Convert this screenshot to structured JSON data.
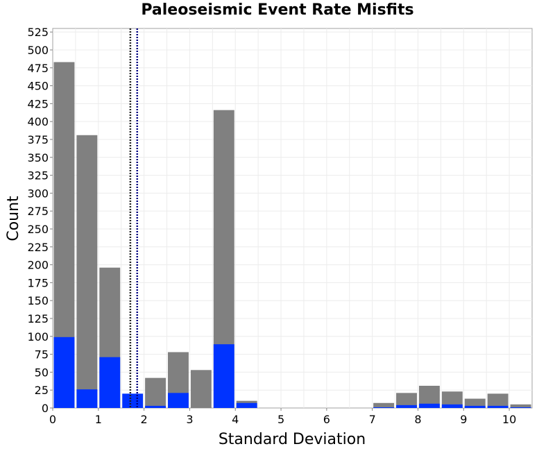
{
  "chart_data": {
    "type": "bar",
    "title": "Paleoseismic Event Rate Misfits",
    "xlabel": "Standard Deviation",
    "ylabel": "Count",
    "xlim": [
      0,
      10.5
    ],
    "ylim": [
      0,
      530
    ],
    "x_ticks": [
      "0",
      "1",
      "2",
      "3",
      "4",
      "5",
      "6",
      "7",
      "8",
      "9",
      "10"
    ],
    "y_ticks": [
      "0",
      "25",
      "50",
      "75",
      "100",
      "125",
      "150",
      "175",
      "200",
      "225",
      "250",
      "275",
      "300",
      "325",
      "350",
      "375",
      "400",
      "425",
      "450",
      "475",
      "500",
      "525"
    ],
    "grid": true,
    "bin_width": 0.5,
    "bins": [
      0.25,
      0.75,
      1.25,
      1.75,
      2.25,
      2.75,
      3.25,
      3.75,
      4.25,
      7.25,
      7.75,
      8.25,
      8.75,
      9.25,
      9.75,
      10.25
    ],
    "series": [
      {
        "color": "#808080",
        "values": [
          483,
          381,
          196,
          0,
          42,
          78,
          53,
          416,
          10,
          7,
          21,
          31,
          23,
          13,
          20,
          5
        ]
      },
      {
        "color": "#0033ff",
        "values": [
          99,
          26,
          71,
          20,
          3,
          21,
          0,
          89,
          7,
          1,
          4,
          6,
          5,
          3,
          3,
          1
        ]
      }
    ],
    "reference_lines": [
      {
        "x": 1.7,
        "color": "#222222",
        "style": "dotted"
      },
      {
        "x": 1.85,
        "color": "#000080",
        "style": "dotted"
      }
    ]
  }
}
